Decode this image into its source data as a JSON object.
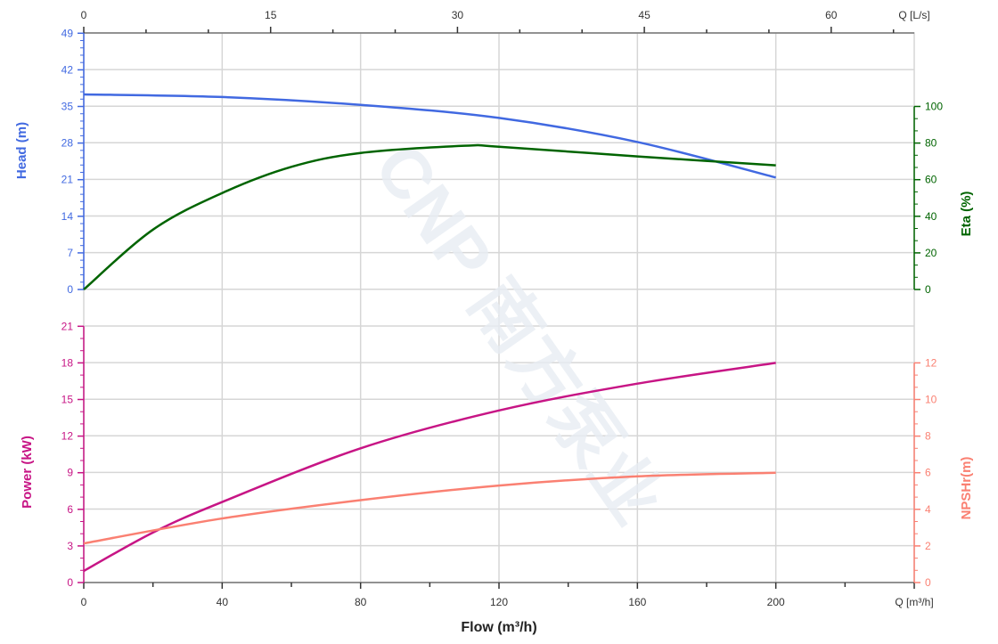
{
  "chart_data": {
    "type": "line",
    "xlabel": "Flow (m³/h)",
    "x_unit_label": "Q [m³/h]",
    "x_top_unit_label": "Q [L/s]",
    "xlim": [
      0,
      240
    ],
    "x_ticks": [
      0,
      40,
      80,
      120,
      160,
      200
    ],
    "x_top_ticks": [
      0,
      15,
      30,
      45,
      60
    ],
    "grid": true,
    "watermark": "CNP 南方泵业",
    "axes": {
      "head": {
        "label": "Head (m)",
        "ticks": [
          0,
          7,
          14,
          21,
          28,
          35,
          42,
          49
        ],
        "ylim": [
          0,
          49
        ],
        "color": "#4169e1"
      },
      "eta": {
        "label": "Eta (%)",
        "ticks": [
          0,
          20,
          40,
          60,
          80,
          100
        ],
        "ylim": [
          0,
          100
        ],
        "color": "#006400"
      },
      "power": {
        "label": "Power (kW)",
        "ticks": [
          0,
          3,
          6,
          9,
          12,
          15,
          18,
          21
        ],
        "ylim": [
          0,
          21
        ],
        "color": "#c71585"
      },
      "npsh": {
        "label": "NPSHr(m)",
        "ticks": [
          0,
          2,
          4,
          6,
          8,
          10,
          12
        ],
        "ylim": [
          0,
          14
        ],
        "color": "#fa8072"
      }
    },
    "series": [
      {
        "axis": "head",
        "x": [
          0,
          40,
          80,
          120,
          160,
          200
        ],
        "y": [
          37.3,
          36.8,
          35.3,
          32.8,
          28.2,
          21.4
        ]
      },
      {
        "axis": "eta",
        "x": [
          0,
          20,
          40,
          60,
          80,
          110,
          120,
          160,
          200
        ],
        "y": [
          0,
          32.7,
          52.7,
          67,
          74.6,
          78.5,
          78,
          72.7,
          67.8
        ]
      },
      {
        "axis": "power",
        "x": [
          0,
          20,
          40,
          80,
          120,
          160,
          200
        ],
        "y": [
          0.95,
          4.1,
          6.6,
          11.0,
          14.1,
          16.3,
          18.0
        ]
      },
      {
        "axis": "npsh",
        "x": [
          0,
          40,
          80,
          120,
          160,
          200
        ],
        "y": [
          2.14,
          3.5,
          4.5,
          5.3,
          5.8,
          6.0
        ]
      }
    ]
  }
}
